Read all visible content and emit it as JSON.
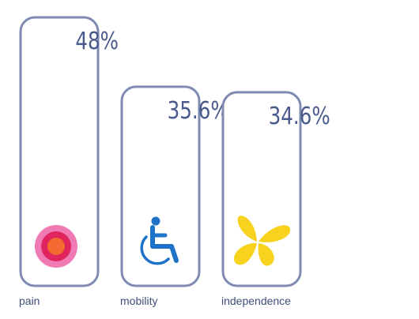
{
  "chart_data": {
    "type": "bar",
    "categories": [
      "pain",
      "mobility",
      "independence"
    ],
    "values": [
      48,
      35.6,
      34.6
    ],
    "value_labels": [
      "48%",
      "35.6%",
      "34.6%"
    ],
    "icons": [
      "pain-target-icon",
      "wheelchair-icon",
      "butterfly-icon"
    ],
    "ylim": [
      0,
      48
    ],
    "grid": false,
    "legend": "none"
  },
  "colors": {
    "frame": "#7f8bb0",
    "value_text": "#4a5a8c",
    "label_text": "#3f4f7a",
    "pain_outer": "#f07bb4",
    "pain_mid": "#e0245e",
    "pain_inner": "#f26a30",
    "wheelchair": "#1e73c8",
    "butterfly": "#f7d21e"
  }
}
